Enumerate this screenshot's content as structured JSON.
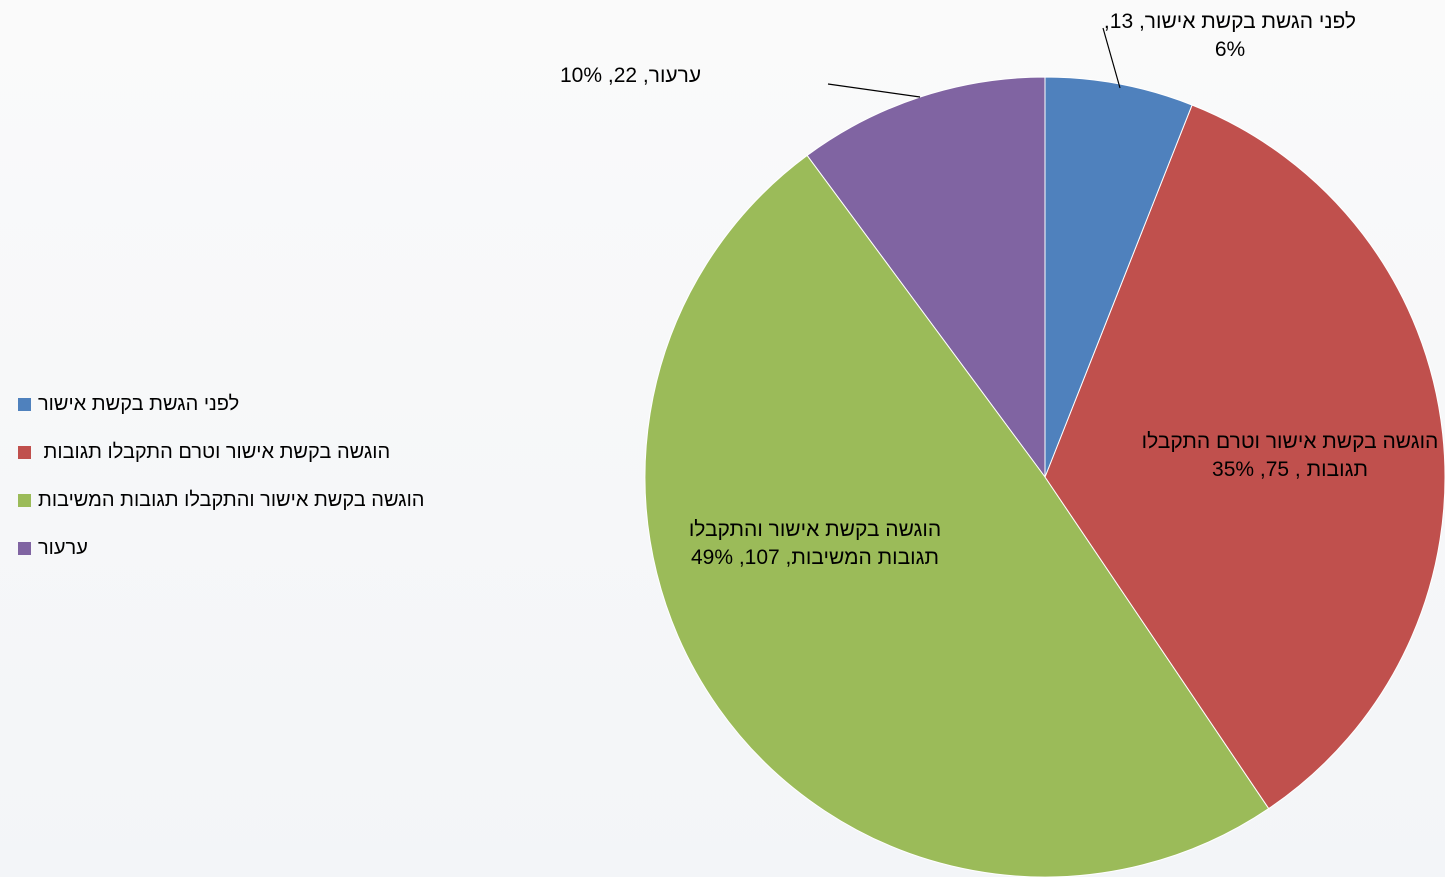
{
  "chart_data": {
    "type": "pie",
    "categories": [
      "לפני הגשת בקשת אישור",
      "הוגשה בקשת אישור וטרם התקבלו תגובות ",
      "הוגשה בקשת אישור והתקבלו תגובות המשיבות",
      "ערעור"
    ],
    "values": [
      13,
      75,
      107,
      22
    ],
    "value_labels": [
      "לפני הגשת בקשת אישור, 13, 6%",
      "הוגשה בקשת אישור וטרם התקבלו תגובות , 75, 35%",
      "הוגשה בקשת אישור והתקבלו תגובות המשיבות, 107, 49%",
      "ערעור, 22, 10%"
    ],
    "colors": [
      "#4f81bd",
      "#c0504d",
      "#9bbb59",
      "#8064a2"
    ],
    "legend": "left"
  }
}
